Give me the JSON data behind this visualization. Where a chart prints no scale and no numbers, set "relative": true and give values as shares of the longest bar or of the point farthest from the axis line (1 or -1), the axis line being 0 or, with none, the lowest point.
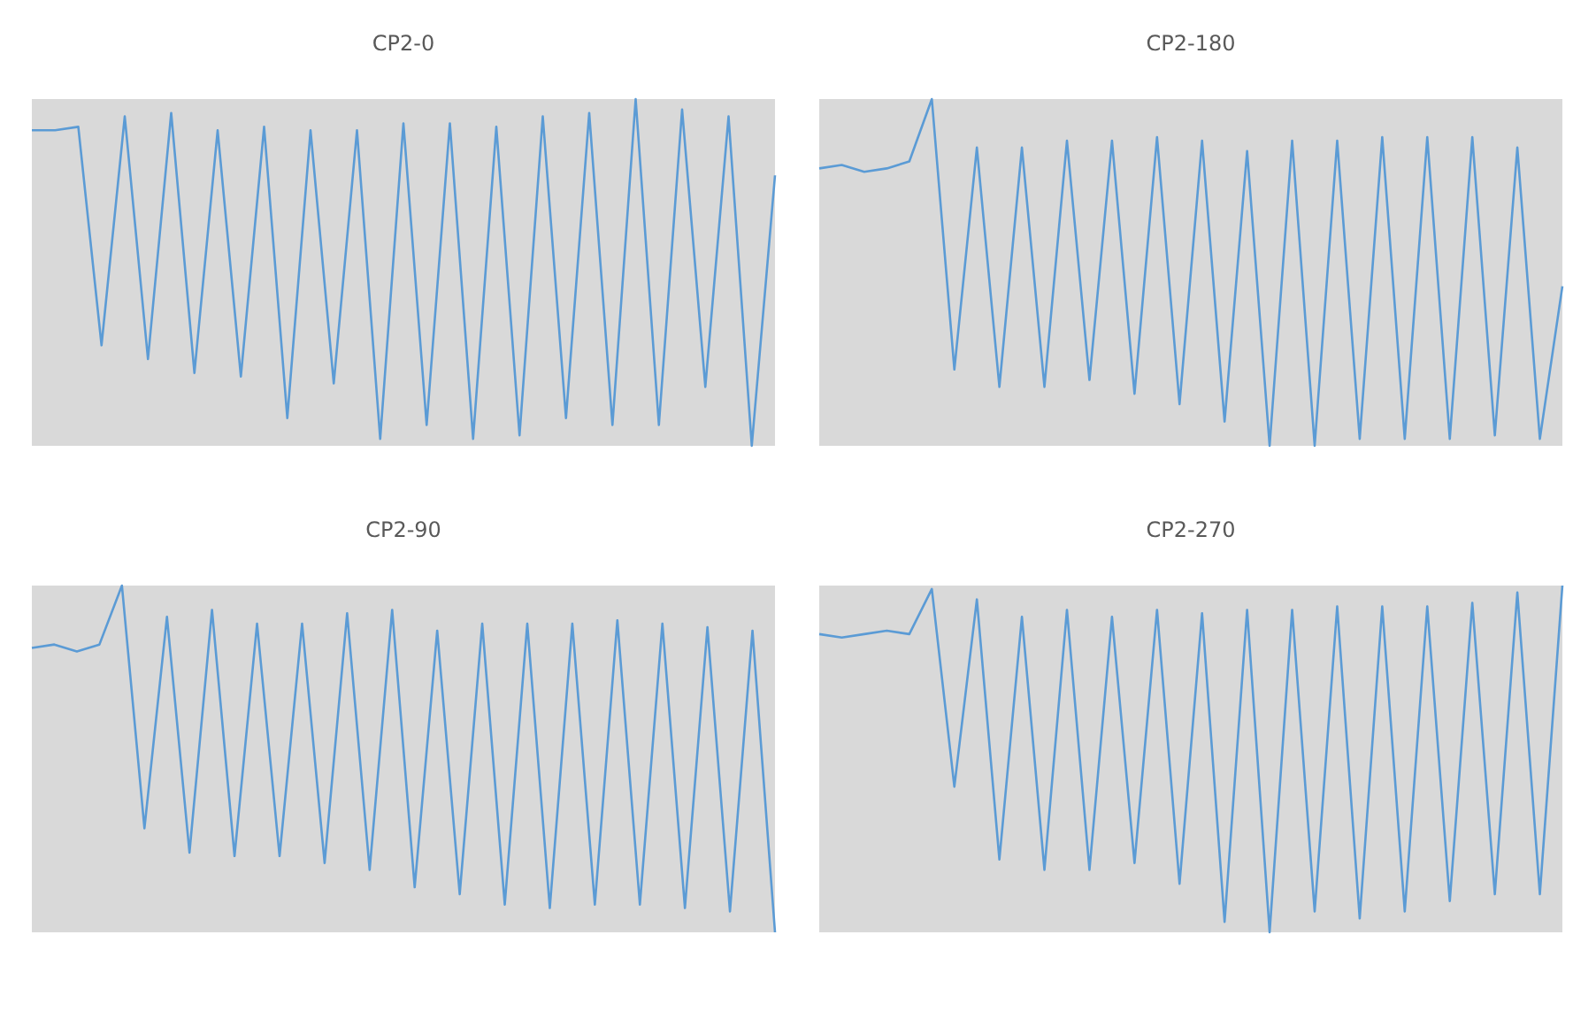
{
  "chart_data": [
    {
      "type": "line",
      "title": "CP2-0",
      "relative": true,
      "categories": [
        null,
        null,
        null,
        null,
        null,
        null,
        null,
        null,
        null,
        null,
        null,
        null,
        null,
        null,
        null,
        null,
        null,
        null,
        null,
        null,
        null,
        null,
        null,
        null,
        null,
        null,
        null,
        null,
        null,
        null,
        null,
        null,
        null
      ],
      "series": [
        {
          "color": "#5b9bd5",
          "values": [
            0.91,
            0.91,
            0.92,
            0.29,
            0.95,
            0.25,
            0.96,
            0.21,
            0.91,
            0.2,
            0.92,
            0.08,
            0.91,
            0.18,
            0.91,
            0.02,
            0.93,
            0.06,
            0.93,
            0.02,
            0.92,
            0.03,
            0.95,
            0.08,
            0.96,
            0.06,
            1,
            0.06,
            0.97,
            0.17,
            0.95,
            0,
            0.78
          ]
        }
      ]
    },
    {
      "type": "line",
      "title": "CP2-180",
      "relative": true,
      "categories": [
        null,
        null,
        null,
        null,
        null,
        null,
        null,
        null,
        null,
        null,
        null,
        null,
        null,
        null,
        null,
        null,
        null,
        null,
        null,
        null,
        null,
        null,
        null,
        null,
        null,
        null,
        null,
        null,
        null,
        null,
        null,
        null,
        null,
        null
      ],
      "series": [
        {
          "color": "#5b9bd5",
          "values": [
            0.8,
            0.81,
            0.79,
            0.8,
            0.82,
            1,
            0.22,
            0.86,
            0.17,
            0.86,
            0.17,
            0.88,
            0.19,
            0.88,
            0.15,
            0.89,
            0.12,
            0.88,
            0.07,
            0.85,
            0,
            0.88,
            0,
            0.88,
            0.02,
            0.89,
            0.02,
            0.89,
            0.02,
            0.89,
            0.03,
            0.86,
            0.02,
            0.46
          ]
        }
      ]
    },
    {
      "type": "line",
      "title": "CP2-90",
      "relative": true,
      "categories": [
        null,
        null,
        null,
        null,
        null,
        null,
        null,
        null,
        null,
        null,
        null,
        null,
        null,
        null,
        null,
        null,
        null,
        null,
        null,
        null,
        null,
        null,
        null,
        null,
        null,
        null,
        null,
        null,
        null,
        null,
        null,
        null,
        null,
        null
      ],
      "series": [
        {
          "color": "#5b9bd5",
          "values": [
            0.82,
            0.83,
            0.81,
            0.83,
            1,
            0.3,
            0.91,
            0.23,
            0.93,
            0.22,
            0.89,
            0.22,
            0.89,
            0.2,
            0.92,
            0.18,
            0.93,
            0.13,
            0.87,
            0.11,
            0.89,
            0.08,
            0.89,
            0.07,
            0.89,
            0.08,
            0.9,
            0.08,
            0.89,
            0.07,
            0.88,
            0.06,
            0.87,
            0
          ]
        }
      ]
    },
    {
      "type": "line",
      "title": "CP2-270",
      "relative": true,
      "categories": [
        null,
        null,
        null,
        null,
        null,
        null,
        null,
        null,
        null,
        null,
        null,
        null,
        null,
        null,
        null,
        null,
        null,
        null,
        null,
        null,
        null,
        null,
        null,
        null,
        null,
        null,
        null,
        null,
        null,
        null,
        null,
        null,
        null,
        null
      ],
      "series": [
        {
          "color": "#5b9bd5",
          "values": [
            0.86,
            0.85,
            0.86,
            0.87,
            0.86,
            0.99,
            0.42,
            0.96,
            0.21,
            0.91,
            0.18,
            0.93,
            0.18,
            0.91,
            0.2,
            0.93,
            0.14,
            0.92,
            0.03,
            0.93,
            0,
            0.93,
            0.06,
            0.94,
            0.04,
            0.94,
            0.06,
            0.94,
            0.09,
            0.95,
            0.11,
            0.98,
            0.11,
            1
          ]
        }
      ]
    }
  ]
}
